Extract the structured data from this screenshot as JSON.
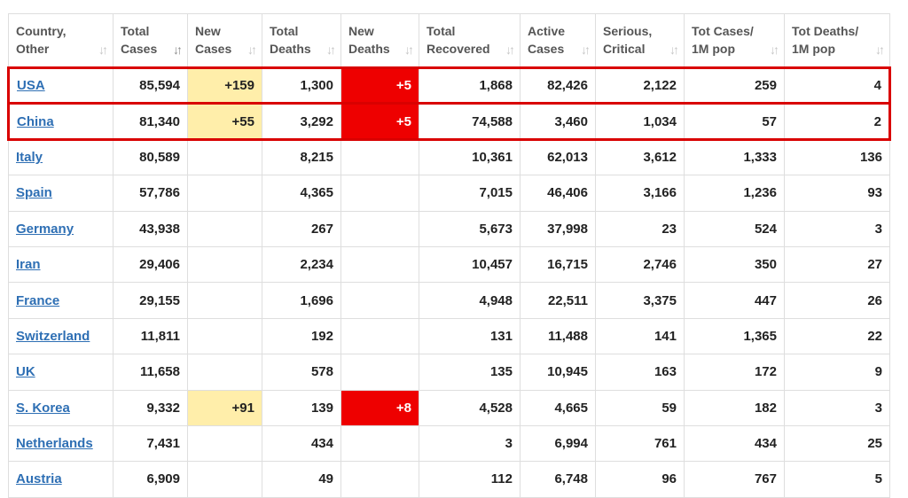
{
  "columns": [
    {
      "line1": "Country,",
      "line2": "Other",
      "sort": "↓↑",
      "active": false
    },
    {
      "line1": "Total",
      "line2": "Cases",
      "sort": "↓↑",
      "active": true
    },
    {
      "line1": "New",
      "line2": "Cases",
      "sort": "↓↑",
      "active": false
    },
    {
      "line1": "Total",
      "line2": "Deaths",
      "sort": "↓↑",
      "active": false
    },
    {
      "line1": "New",
      "line2": "Deaths",
      "sort": "↓↑",
      "active": false
    },
    {
      "line1": "Total",
      "line2": "Recovered",
      "sort": "↓↑",
      "active": false
    },
    {
      "line1": "Active",
      "line2": "Cases",
      "sort": "↓↑",
      "active": false
    },
    {
      "line1": "Serious,",
      "line2": "Critical",
      "sort": "↓↑",
      "active": false
    },
    {
      "line1": "Tot Cases/",
      "line2": "1M pop",
      "sort": "↓↑",
      "active": false
    },
    {
      "line1": "Tot Deaths/",
      "line2": "1M pop",
      "sort": "↓↑",
      "active": false
    }
  ],
  "rows": [
    {
      "country": "USA",
      "total_cases": "85,594",
      "new_cases": "+159",
      "total_deaths": "1,300",
      "new_deaths": "+5",
      "total_recovered": "1,868",
      "active_cases": "82,426",
      "serious_critical": "2,122",
      "cases_per_1m": "259",
      "deaths_per_1m": "4",
      "boxed": true
    },
    {
      "country": "China",
      "total_cases": "81,340",
      "new_cases": "+55",
      "total_deaths": "3,292",
      "new_deaths": "+5",
      "total_recovered": "74,588",
      "active_cases": "3,460",
      "serious_critical": "1,034",
      "cases_per_1m": "57",
      "deaths_per_1m": "2",
      "boxed": true
    },
    {
      "country": "Italy",
      "total_cases": "80,589",
      "new_cases": "",
      "total_deaths": "8,215",
      "new_deaths": "",
      "total_recovered": "10,361",
      "active_cases": "62,013",
      "serious_critical": "3,612",
      "cases_per_1m": "1,333",
      "deaths_per_1m": "136",
      "boxed": false
    },
    {
      "country": "Spain",
      "total_cases": "57,786",
      "new_cases": "",
      "total_deaths": "4,365",
      "new_deaths": "",
      "total_recovered": "7,015",
      "active_cases": "46,406",
      "serious_critical": "3,166",
      "cases_per_1m": "1,236",
      "deaths_per_1m": "93",
      "boxed": false
    },
    {
      "country": "Germany",
      "total_cases": "43,938",
      "new_cases": "",
      "total_deaths": "267",
      "new_deaths": "",
      "total_recovered": "5,673",
      "active_cases": "37,998",
      "serious_critical": "23",
      "cases_per_1m": "524",
      "deaths_per_1m": "3",
      "boxed": false
    },
    {
      "country": "Iran",
      "total_cases": "29,406",
      "new_cases": "",
      "total_deaths": "2,234",
      "new_deaths": "",
      "total_recovered": "10,457",
      "active_cases": "16,715",
      "serious_critical": "2,746",
      "cases_per_1m": "350",
      "deaths_per_1m": "27",
      "boxed": false
    },
    {
      "country": "France",
      "total_cases": "29,155",
      "new_cases": "",
      "total_deaths": "1,696",
      "new_deaths": "",
      "total_recovered": "4,948",
      "active_cases": "22,511",
      "serious_critical": "3,375",
      "cases_per_1m": "447",
      "deaths_per_1m": "26",
      "boxed": false
    },
    {
      "country": "Switzerland",
      "total_cases": "11,811",
      "new_cases": "",
      "total_deaths": "192",
      "new_deaths": "",
      "total_recovered": "131",
      "active_cases": "11,488",
      "serious_critical": "141",
      "cases_per_1m": "1,365",
      "deaths_per_1m": "22",
      "boxed": false
    },
    {
      "country": "UK",
      "total_cases": "11,658",
      "new_cases": "",
      "total_deaths": "578",
      "new_deaths": "",
      "total_recovered": "135",
      "active_cases": "10,945",
      "serious_critical": "163",
      "cases_per_1m": "172",
      "deaths_per_1m": "9",
      "boxed": false
    },
    {
      "country": "S. Korea",
      "total_cases": "9,332",
      "new_cases": "+91",
      "total_deaths": "139",
      "new_deaths": "+8",
      "total_recovered": "4,528",
      "active_cases": "4,665",
      "serious_critical": "59",
      "cases_per_1m": "182",
      "deaths_per_1m": "3",
      "boxed": false
    },
    {
      "country": "Netherlands",
      "total_cases": "7,431",
      "new_cases": "",
      "total_deaths": "434",
      "new_deaths": "",
      "total_recovered": "3",
      "active_cases": "6,994",
      "serious_critical": "761",
      "cases_per_1m": "434",
      "deaths_per_1m": "25",
      "boxed": false
    },
    {
      "country": "Austria",
      "total_cases": "6,909",
      "new_cases": "",
      "total_deaths": "49",
      "new_deaths": "",
      "total_recovered": "112",
      "active_cases": "6,748",
      "serious_critical": "96",
      "cases_per_1m": "767",
      "deaths_per_1m": "5",
      "boxed": false
    }
  ],
  "colors": {
    "new_cases_highlight": "#ffeeaa",
    "new_deaths_highlight": "#ee0000",
    "row_box_border": "#d90000",
    "link": "#2e6fb4"
  }
}
